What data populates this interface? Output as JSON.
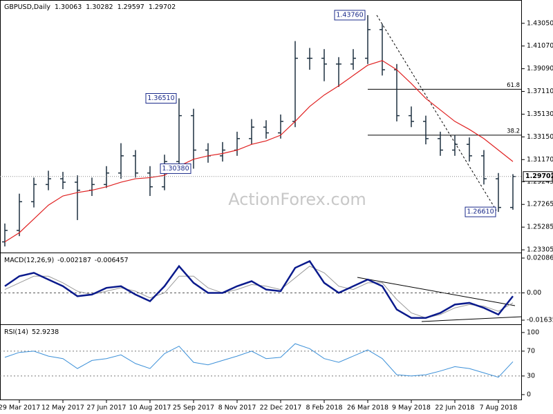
{
  "chart_data": [
    {
      "type": "ohlc",
      "header": {
        "symbol": "GBPUSD,Daily",
        "ohlc": [
          1.30063,
          1.30282,
          1.29597,
          1.29702
        ]
      },
      "watermark": "ActionForex.com",
      "categories": [
        null,
        "29 Mar 2017",
        null,
        null,
        "12 May 2017",
        null,
        null,
        "27 Jun 2017",
        null,
        null,
        "10 Aug 2017",
        null,
        null,
        "25 Sep 2017",
        null,
        null,
        "8 Nov 2017",
        null,
        null,
        "22 Dec 2017",
        null,
        null,
        "8 Feb 2018",
        null,
        null,
        "26 Mar 2018",
        null,
        null,
        "9 May 2018",
        null,
        null,
        "22 Jun 2018",
        null,
        null,
        "7 Aug 2018",
        null
      ],
      "open": [
        1.24,
        1.25,
        1.275,
        1.29,
        1.295,
        1.292,
        1.285,
        1.29,
        1.3,
        1.315,
        1.3,
        1.288,
        1.31,
        1.35,
        1.32,
        1.315,
        1.32,
        1.33,
        1.34,
        1.335,
        1.345,
        1.4,
        1.4,
        1.395,
        1.395,
        1.4,
        1.425,
        1.39,
        1.35,
        1.345,
        1.33,
        1.32,
        1.325,
        1.315,
        1.295,
        1.27
      ],
      "high": [
        1.256,
        1.282,
        1.296,
        1.302,
        1.301,
        1.298,
        1.296,
        1.306,
        1.326,
        1.32,
        1.306,
        1.316,
        1.3651,
        1.356,
        1.326,
        1.327,
        1.336,
        1.347,
        1.346,
        1.351,
        1.415,
        1.409,
        1.408,
        1.401,
        1.408,
        1.4376,
        1.43,
        1.395,
        1.358,
        1.35,
        1.336,
        1.333,
        1.331,
        1.32,
        1.3,
        1.299
      ],
      "low": [
        1.236,
        1.245,
        1.27,
        1.285,
        1.286,
        1.259,
        1.28,
        1.287,
        1.295,
        1.296,
        1.28,
        1.285,
        1.306,
        1.3038,
        1.309,
        1.31,
        1.315,
        1.325,
        1.33,
        1.33,
        1.34,
        1.39,
        1.38,
        1.375,
        1.39,
        1.395,
        1.385,
        1.345,
        1.34,
        1.325,
        1.315,
        1.315,
        1.31,
        1.29,
        1.2661,
        1.268
      ],
      "close": [
        1.25,
        1.275,
        1.29,
        1.295,
        1.292,
        1.285,
        1.29,
        1.3,
        1.315,
        1.3,
        1.288,
        1.31,
        1.35,
        1.32,
        1.315,
        1.32,
        1.33,
        1.34,
        1.335,
        1.345,
        1.4,
        1.4,
        1.395,
        1.395,
        1.4,
        1.425,
        1.39,
        1.35,
        1.345,
        1.33,
        1.32,
        1.325,
        1.315,
        1.295,
        1.27,
        1.297
      ],
      "ma": {
        "color": "#e02020",
        "values": [
          1.24,
          1.248,
          1.26,
          1.272,
          1.28,
          1.283,
          1.285,
          1.288,
          1.292,
          1.295,
          1.296,
          1.298,
          1.306,
          1.312,
          1.315,
          1.317,
          1.32,
          1.325,
          1.328,
          1.333,
          1.345,
          1.358,
          1.368,
          1.376,
          1.385,
          1.394,
          1.398,
          1.39,
          1.378,
          1.365,
          1.355,
          1.345,
          1.338,
          1.33,
          1.32,
          1.31
        ]
      },
      "color": "#1c2f3f",
      "ylim": [
        1.2313,
        1.4496
      ],
      "yticks": [
        {
          "value": 1.4305,
          "label": "1.43050"
        },
        {
          "value": 1.4107,
          "label": "1.41070"
        },
        {
          "value": 1.3909,
          "label": "1.39090"
        },
        {
          "value": 1.3711,
          "label": "1.37110"
        },
        {
          "value": 1.3513,
          "label": "1.35130"
        },
        {
          "value": 1.3315,
          "label": "1.33150"
        },
        {
          "value": 1.3117,
          "label": "1.31170"
        },
        {
          "value": 1.29245,
          "label": "1.29245"
        },
        {
          "value": 1.27265,
          "label": "1.27265"
        },
        {
          "value": 1.25285,
          "label": "1.25285"
        },
        {
          "value": 1.23305,
          "label": "1.23305"
        }
      ],
      "annotations": [
        {
          "value": 1.4376,
          "label": "1.43760"
        },
        {
          "value": 1.3651,
          "label": "1.36510"
        },
        {
          "value": 1.3038,
          "label": "1.30380"
        },
        {
          "value": 1.2661,
          "label": "1.26610"
        }
      ],
      "fib": [
        {
          "label": 61.8,
          "price": 1.373
        },
        {
          "label": 38.2,
          "price": 1.333
        }
      ]
    },
    {
      "type": "line",
      "title": "MACD(12,26,9)",
      "last": [
        -0.002187,
        -0.006457
      ],
      "series": [
        {
          "color": "#0a1a8c",
          "values": [
            0.004,
            0.01,
            0.012,
            0.008,
            0.004,
            -0.002,
            -0.001,
            0.003,
            0.004,
            -0.001,
            -0.005,
            0.004,
            0.016,
            0.006,
            0.0,
            0.0,
            0.004,
            0.007,
            0.002,
            0.001,
            0.015,
            0.019,
            0.006,
            0.0,
            0.004,
            0.008,
            0.004,
            -0.01,
            -0.015,
            -0.015,
            -0.012,
            -0.007,
            -0.006,
            -0.009,
            -0.013,
            -0.002
          ]
        },
        {
          "color": "#9a9a9a",
          "values": [
            0.002,
            0.006,
            0.01,
            0.01,
            0.006,
            0.001,
            -0.001,
            0.001,
            0.003,
            0.001,
            -0.003,
            0.0,
            0.01,
            0.01,
            0.003,
            0.0,
            0.002,
            0.005,
            0.004,
            0.002,
            0.009,
            0.016,
            0.012,
            0.004,
            0.002,
            0.006,
            0.006,
            -0.004,
            -0.012,
            -0.015,
            -0.013,
            -0.009,
            -0.007,
            -0.008,
            -0.011,
            -0.006
          ]
        }
      ],
      "ylim": [
        -0.01801,
        0.02334
      ],
      "yticks": [
        0.020861,
        {
          "value": 0,
          "label": "0.00"
        },
        -0.016357
      ]
    },
    {
      "type": "line",
      "title": "RSI(14)",
      "last": [
        52.9238
      ],
      "series": [
        {
          "color": "#3a8fd8",
          "values": [
            60,
            68,
            70,
            62,
            58,
            42,
            55,
            58,
            64,
            50,
            42,
            66,
            78,
            52,
            48,
            55,
            62,
            70,
            58,
            60,
            82,
            74,
            58,
            52,
            62,
            72,
            58,
            32,
            30,
            32,
            38,
            45,
            42,
            35,
            28,
            53
          ]
        }
      ],
      "ylim": [
        -9,
        111
      ],
      "yticks": [
        100,
        70,
        30,
        0
      ],
      "levels": [
        70,
        30
      ]
    }
  ]
}
